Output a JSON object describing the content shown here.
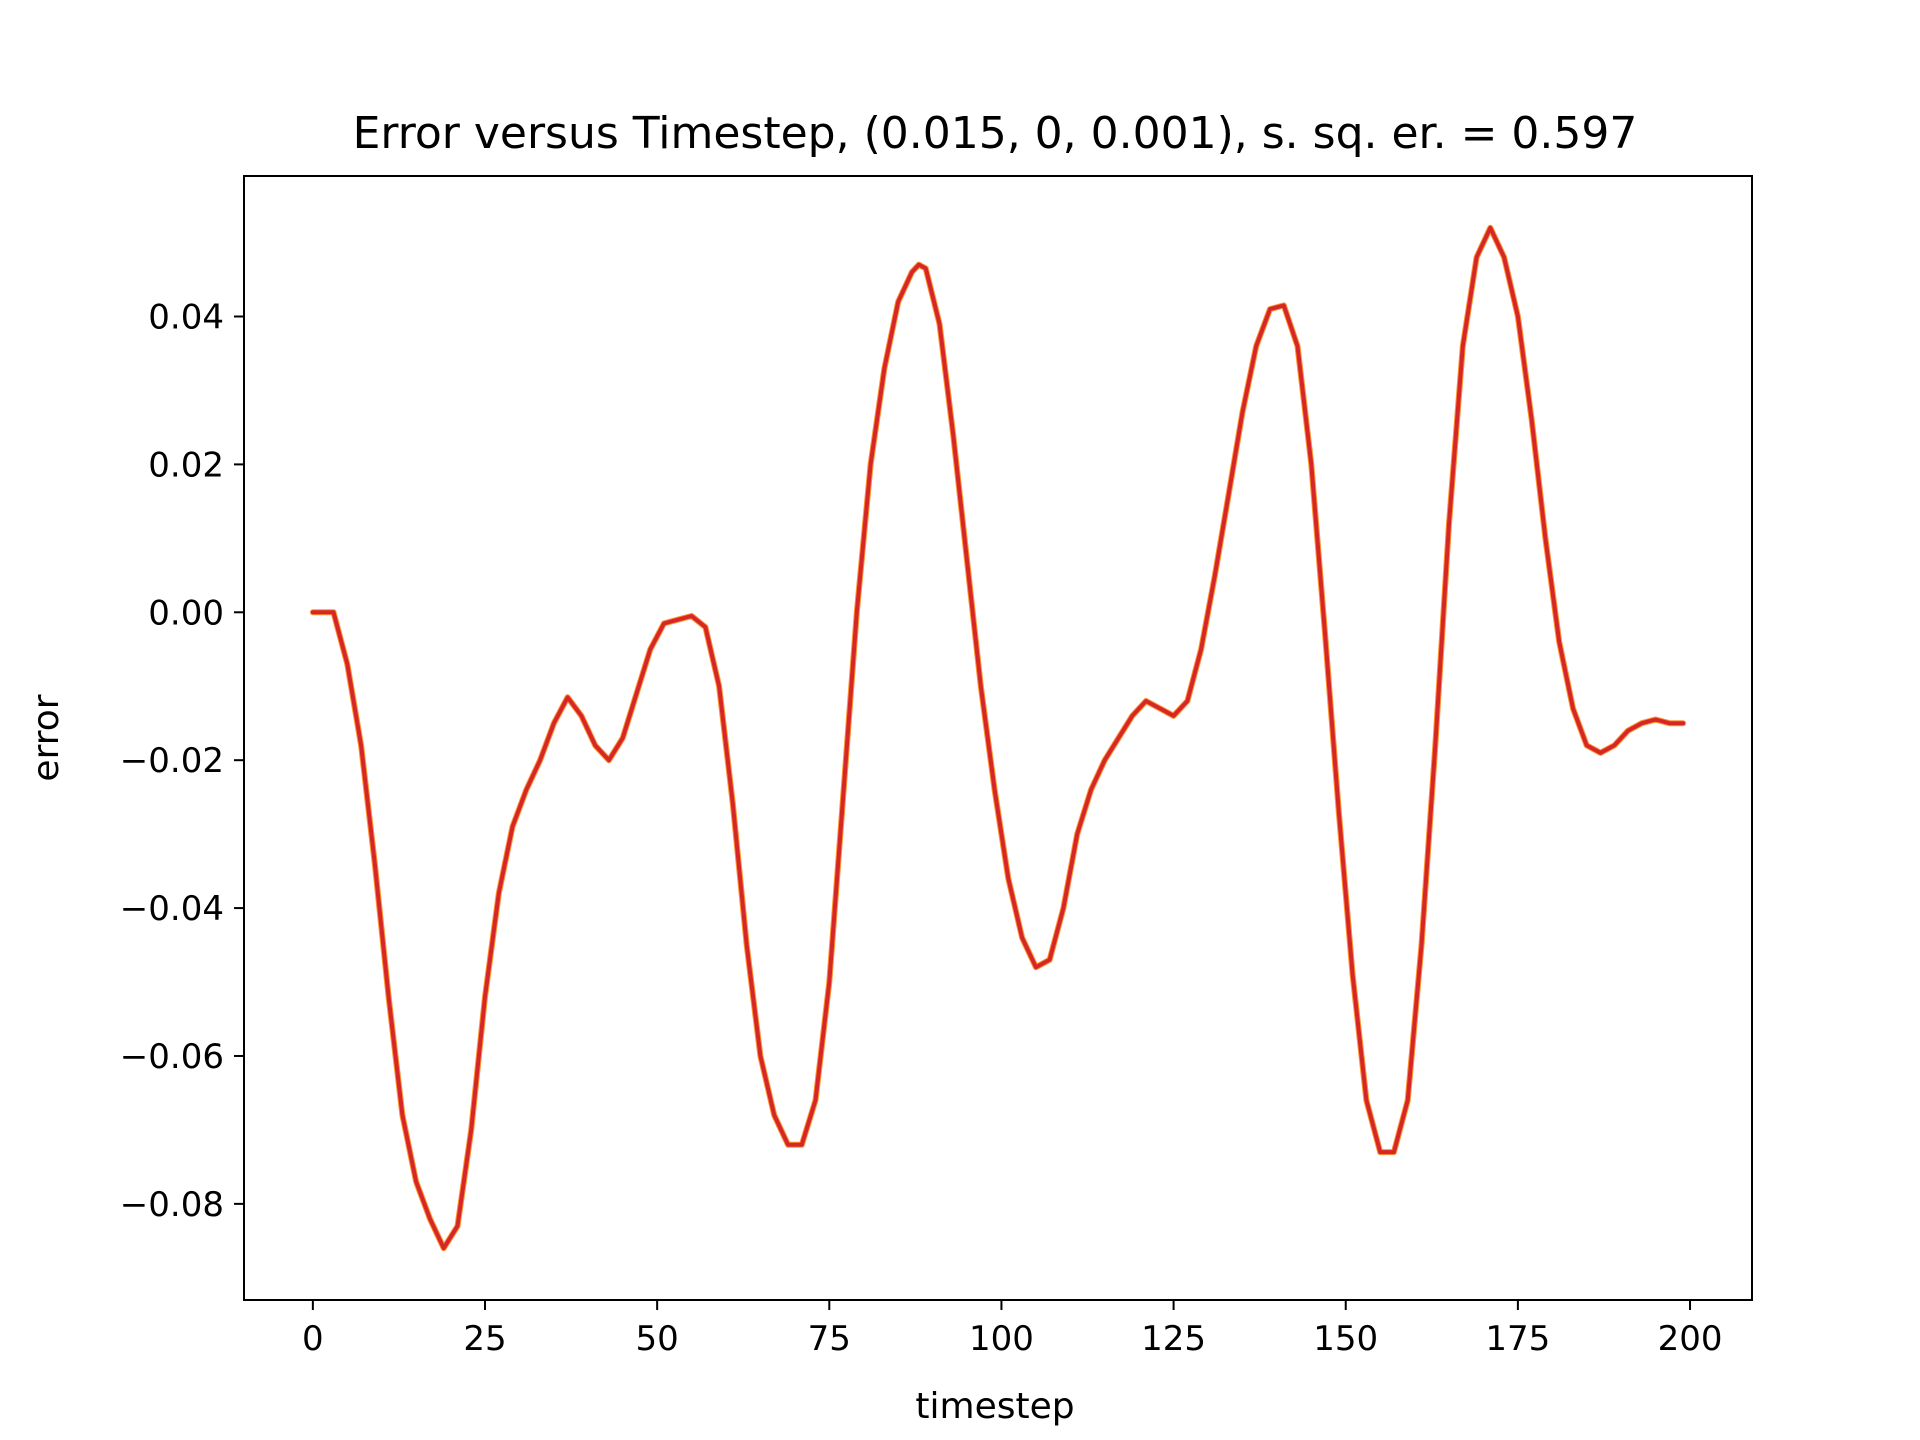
{
  "chart_data": {
    "type": "line",
    "title": "Error versus Timestep, (0.015, 0, 0.001), s. sq. er. = 0.597",
    "xlabel": "timestep",
    "ylabel": "error",
    "xlim": [
      -10,
      209
    ],
    "ylim": [
      -0.093,
      0.059
    ],
    "xticks": [
      0,
      25,
      50,
      75,
      100,
      125,
      150,
      175,
      200
    ],
    "xtick_labels": [
      "0",
      "25",
      "50",
      "75",
      "100",
      "125",
      "150",
      "175",
      "200"
    ],
    "yticks": [
      -0.08,
      -0.06,
      -0.04,
      -0.02,
      0.0,
      0.02,
      0.04
    ],
    "ytick_labels": [
      "−0.08",
      "−0.06",
      "−0.04",
      "−0.02",
      "0.00",
      "0.02",
      "0.04"
    ],
    "grid": false,
    "line_color": "#d62728",
    "shadow_color": "#ff7f0e",
    "series": [
      {
        "points": [
          [
            0,
            0.0
          ],
          [
            3,
            0.0
          ],
          [
            5,
            -0.007
          ],
          [
            7,
            -0.018
          ],
          [
            9,
            -0.034
          ],
          [
            11,
            -0.052
          ],
          [
            13,
            -0.068
          ],
          [
            15,
            -0.077
          ],
          [
            17,
            -0.082
          ],
          [
            19,
            -0.086
          ],
          [
            21,
            -0.083
          ],
          [
            23,
            -0.07
          ],
          [
            25,
            -0.052
          ],
          [
            27,
            -0.038
          ],
          [
            29,
            -0.029
          ],
          [
            31,
            -0.024
          ],
          [
            33,
            -0.02
          ],
          [
            35,
            -0.015
          ],
          [
            37,
            -0.0115
          ],
          [
            39,
            -0.014
          ],
          [
            41,
            -0.018
          ],
          [
            43,
            -0.02
          ],
          [
            45,
            -0.017
          ],
          [
            47,
            -0.011
          ],
          [
            49,
            -0.005
          ],
          [
            51,
            -0.0015
          ],
          [
            53,
            -0.001
          ],
          [
            55,
            -0.0005
          ],
          [
            57,
            -0.002
          ],
          [
            59,
            -0.01
          ],
          [
            61,
            -0.026
          ],
          [
            63,
            -0.045
          ],
          [
            65,
            -0.06
          ],
          [
            67,
            -0.068
          ],
          [
            69,
            -0.072
          ],
          [
            71,
            -0.072
          ],
          [
            73,
            -0.066
          ],
          [
            75,
            -0.05
          ],
          [
            77,
            -0.025
          ],
          [
            79,
            0.0
          ],
          [
            81,
            0.02
          ],
          [
            83,
            0.033
          ],
          [
            85,
            0.042
          ],
          [
            87,
            0.046
          ],
          [
            88,
            0.047
          ],
          [
            89,
            0.0465
          ],
          [
            91,
            0.039
          ],
          [
            93,
            0.024
          ],
          [
            95,
            0.007
          ],
          [
            97,
            -0.01
          ],
          [
            99,
            -0.024
          ],
          [
            101,
            -0.036
          ],
          [
            103,
            -0.044
          ],
          [
            105,
            -0.048
          ],
          [
            107,
            -0.047
          ],
          [
            109,
            -0.04
          ],
          [
            111,
            -0.03
          ],
          [
            113,
            -0.024
          ],
          [
            115,
            -0.02
          ],
          [
            117,
            -0.017
          ],
          [
            119,
            -0.014
          ],
          [
            121,
            -0.012
          ],
          [
            123,
            -0.013
          ],
          [
            125,
            -0.014
          ],
          [
            127,
            -0.012
          ],
          [
            129,
            -0.005
          ],
          [
            131,
            0.005
          ],
          [
            133,
            0.016
          ],
          [
            135,
            0.027
          ],
          [
            137,
            0.036
          ],
          [
            139,
            0.041
          ],
          [
            141,
            0.0415
          ],
          [
            143,
            0.036
          ],
          [
            145,
            0.02
          ],
          [
            147,
            -0.003
          ],
          [
            149,
            -0.027
          ],
          [
            151,
            -0.049
          ],
          [
            153,
            -0.066
          ],
          [
            155,
            -0.073
          ],
          [
            157,
            -0.073
          ],
          [
            159,
            -0.066
          ],
          [
            161,
            -0.045
          ],
          [
            163,
            -0.018
          ],
          [
            165,
            0.012
          ],
          [
            167,
            0.036
          ],
          [
            169,
            0.048
          ],
          [
            171,
            0.052
          ],
          [
            173,
            0.048
          ],
          [
            175,
            0.04
          ],
          [
            177,
            0.026
          ],
          [
            179,
            0.01
          ],
          [
            181,
            -0.004
          ],
          [
            183,
            -0.013
          ],
          [
            185,
            -0.018
          ],
          [
            187,
            -0.019
          ],
          [
            189,
            -0.018
          ],
          [
            191,
            -0.016
          ],
          [
            193,
            -0.015
          ],
          [
            195,
            -0.0145
          ],
          [
            197,
            -0.015
          ],
          [
            199,
            -0.015
          ]
        ]
      }
    ]
  }
}
